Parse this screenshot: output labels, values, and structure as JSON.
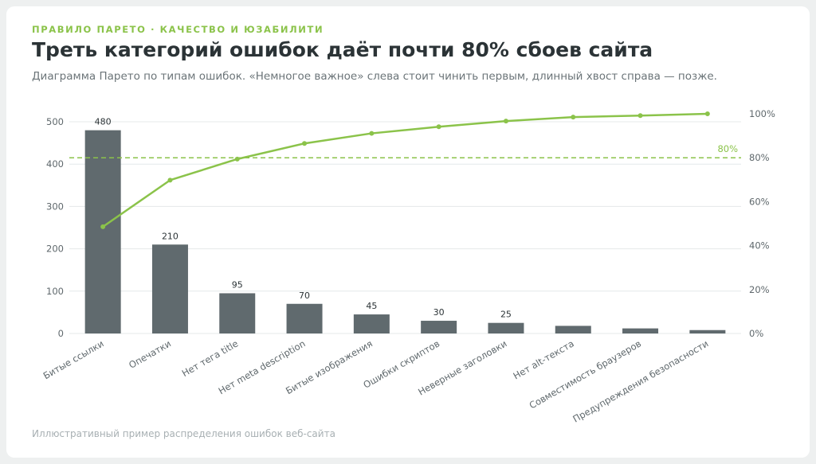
{
  "header": {
    "eyebrow": "ПРАВИЛО ПАРЕТО · КАЧЕСТВО И ЮЗАБИЛИТИ",
    "title": "Треть категорий ошибок даёт почти 80% сбоев сайта",
    "subtitle": "Диаграмма Парето по типам ошибок. «Немногое важное» слева стоит чинить первым, длинный хвост справа — позже."
  },
  "footnote": "Иллюстративный пример распределения ошибок веб-сайта",
  "colors": {
    "bar": "#606a6e",
    "accent": "#8bc34a",
    "grid": "#e4e8ea",
    "axis_text": "#5f686c"
  },
  "chart_data": {
    "type": "bar",
    "categories": [
      "Битые ссылки",
      "Опечатки",
      "Нет тега title",
      "Нет meta description",
      "Битые изображения",
      "Ошибки скриптов",
      "Неверные заголовки",
      "Нет alt-текста",
      "Совместимость браузеров",
      "Предупреждения безопасности"
    ],
    "values": [
      480,
      210,
      95,
      70,
      45,
      30,
      25,
      18,
      12,
      8
    ],
    "data_labels": [
      "480",
      "210",
      "95",
      "70",
      "45",
      "30",
      "25",
      "",
      "",
      ""
    ],
    "cumulative_percent": [
      48.6,
      69.8,
      79.4,
      86.5,
      91.1,
      94.1,
      96.7,
      98.5,
      99.2,
      100
    ],
    "ylim": [
      0,
      500
    ],
    "yticks": [
      0,
      100,
      200,
      300,
      400,
      500
    ],
    "y2lim": [
      0,
      100
    ],
    "y2ticks": [
      "0%",
      "20%",
      "40%",
      "60%",
      "80%",
      "100%"
    ],
    "threshold_label": "80%",
    "threshold_value": 80,
    "grid": true
  }
}
